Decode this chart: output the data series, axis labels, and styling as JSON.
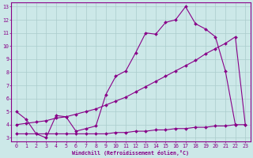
{
  "xlabel": "Windchill (Refroidissement éolien,°C)",
  "bg_color": "#cce8e8",
  "grid_color": "#aacccc",
  "line_color": "#880088",
  "xlim": [
    -0.5,
    23.5
  ],
  "ylim": [
    2.7,
    13.3
  ],
  "xticks": [
    0,
    1,
    2,
    3,
    4,
    5,
    6,
    7,
    8,
    9,
    10,
    11,
    12,
    13,
    14,
    15,
    16,
    17,
    18,
    19,
    20,
    21,
    22,
    23
  ],
  "yticks": [
    3,
    4,
    5,
    6,
    7,
    8,
    9,
    10,
    11,
    12,
    13
  ],
  "series1_x": [
    0,
    1,
    2,
    3,
    4,
    5,
    6,
    7,
    8,
    9,
    10,
    11,
    12,
    13,
    14,
    15,
    16,
    17,
    18,
    19,
    20,
    21,
    22
  ],
  "series1_y": [
    5.0,
    4.4,
    3.3,
    3.0,
    4.7,
    4.6,
    3.5,
    3.7,
    3.9,
    6.3,
    7.7,
    8.1,
    9.5,
    11.0,
    10.9,
    11.8,
    12.0,
    13.0,
    11.7,
    11.3,
    10.7,
    8.1,
    4.0
  ],
  "series2_x": [
    0,
    1,
    2,
    3,
    4,
    5,
    6,
    7,
    8,
    9,
    10,
    11,
    12,
    13,
    14,
    15,
    16,
    17,
    18,
    19,
    20,
    21,
    22,
    23
  ],
  "series2_y": [
    3.3,
    3.3,
    3.3,
    3.3,
    3.3,
    3.3,
    3.3,
    3.3,
    3.3,
    3.3,
    3.4,
    3.4,
    3.5,
    3.5,
    3.6,
    3.6,
    3.7,
    3.7,
    3.8,
    3.8,
    3.9,
    3.9,
    4.0,
    4.0
  ],
  "series3_x": [
    0,
    1,
    2,
    3,
    4,
    5,
    6,
    7,
    8,
    9,
    10,
    11,
    12,
    13,
    14,
    15,
    16,
    17,
    18,
    19,
    20,
    21,
    22,
    23
  ],
  "series3_y": [
    4.0,
    4.1,
    4.2,
    4.3,
    4.5,
    4.6,
    4.8,
    5.0,
    5.2,
    5.5,
    5.8,
    6.1,
    6.5,
    6.9,
    7.3,
    7.7,
    8.1,
    8.5,
    8.9,
    9.4,
    9.8,
    10.2,
    10.7,
    4.0
  ]
}
